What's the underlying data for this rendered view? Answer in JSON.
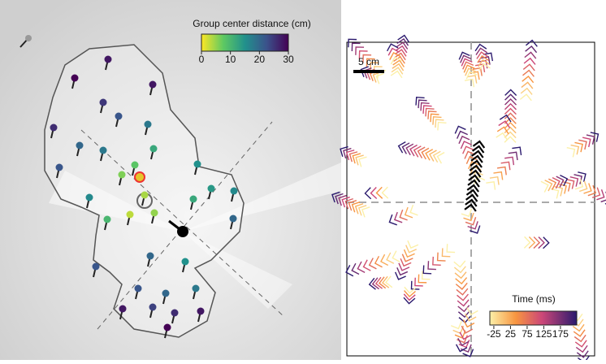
{
  "left_panel": {
    "colorbar": {
      "title": "Group center distance (cm)",
      "lim": [
        0,
        30
      ],
      "ticks": [
        0,
        10,
        20,
        30
      ]
    },
    "fish_distances": [
      28,
      30,
      28,
      25,
      22,
      26,
      18,
      20,
      18,
      12,
      22,
      8,
      6,
      15,
      14,
      16,
      4,
      16,
      3,
      5,
      10,
      12,
      20,
      20,
      15,
      22,
      22,
      18,
      20,
      28,
      24,
      26,
      28,
      30
    ]
  },
  "right_panel": {
    "scale_bar": "5 cm",
    "colorbar": {
      "title": "Time (ms)",
      "lim": [
        -37,
        224
      ],
      "ticks": [
        -25,
        25,
        75,
        125,
        175
      ]
    }
  }
}
